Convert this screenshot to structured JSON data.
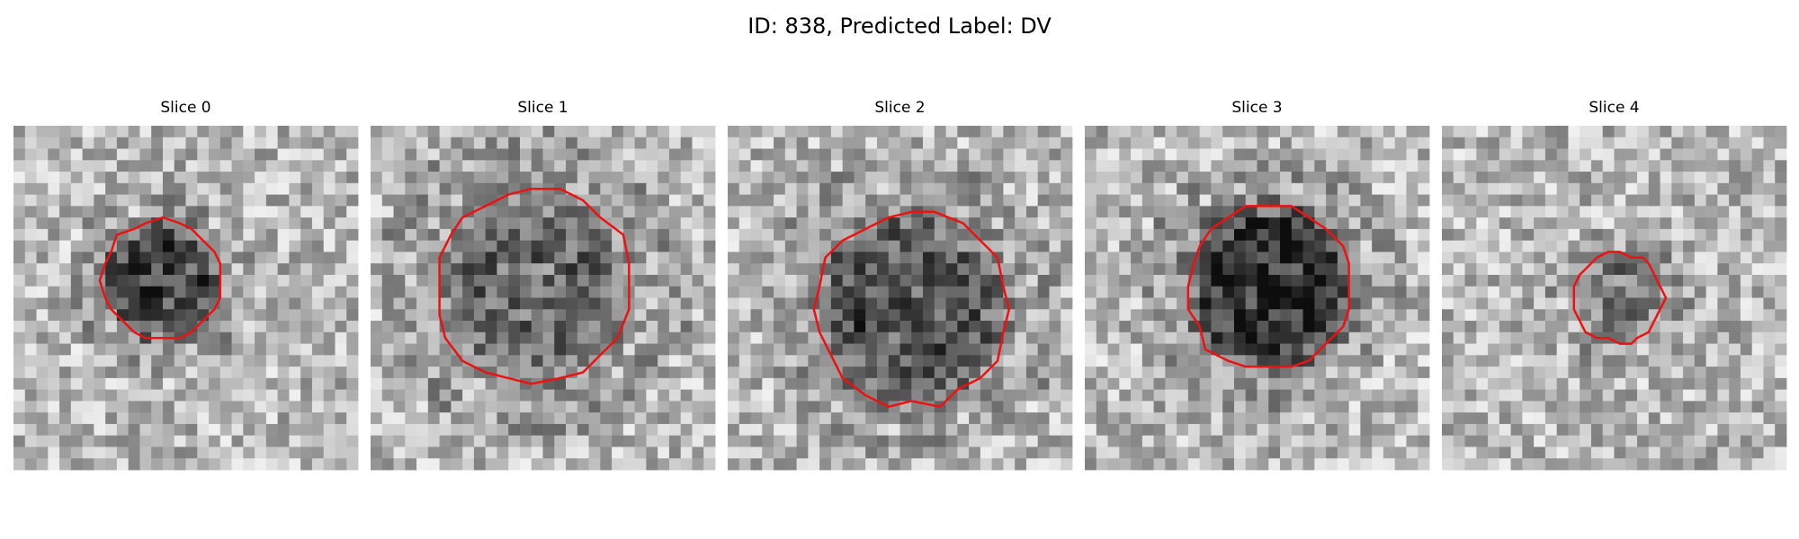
{
  "title": "ID: 838, Predicted Label: DV",
  "panels": [
    {
      "title": "Slice 0"
    },
    {
      "title": "Slice 1"
    },
    {
      "title": "Slice 2"
    },
    {
      "title": "Slice 3"
    },
    {
      "title": "Slice 4"
    }
  ]
}
